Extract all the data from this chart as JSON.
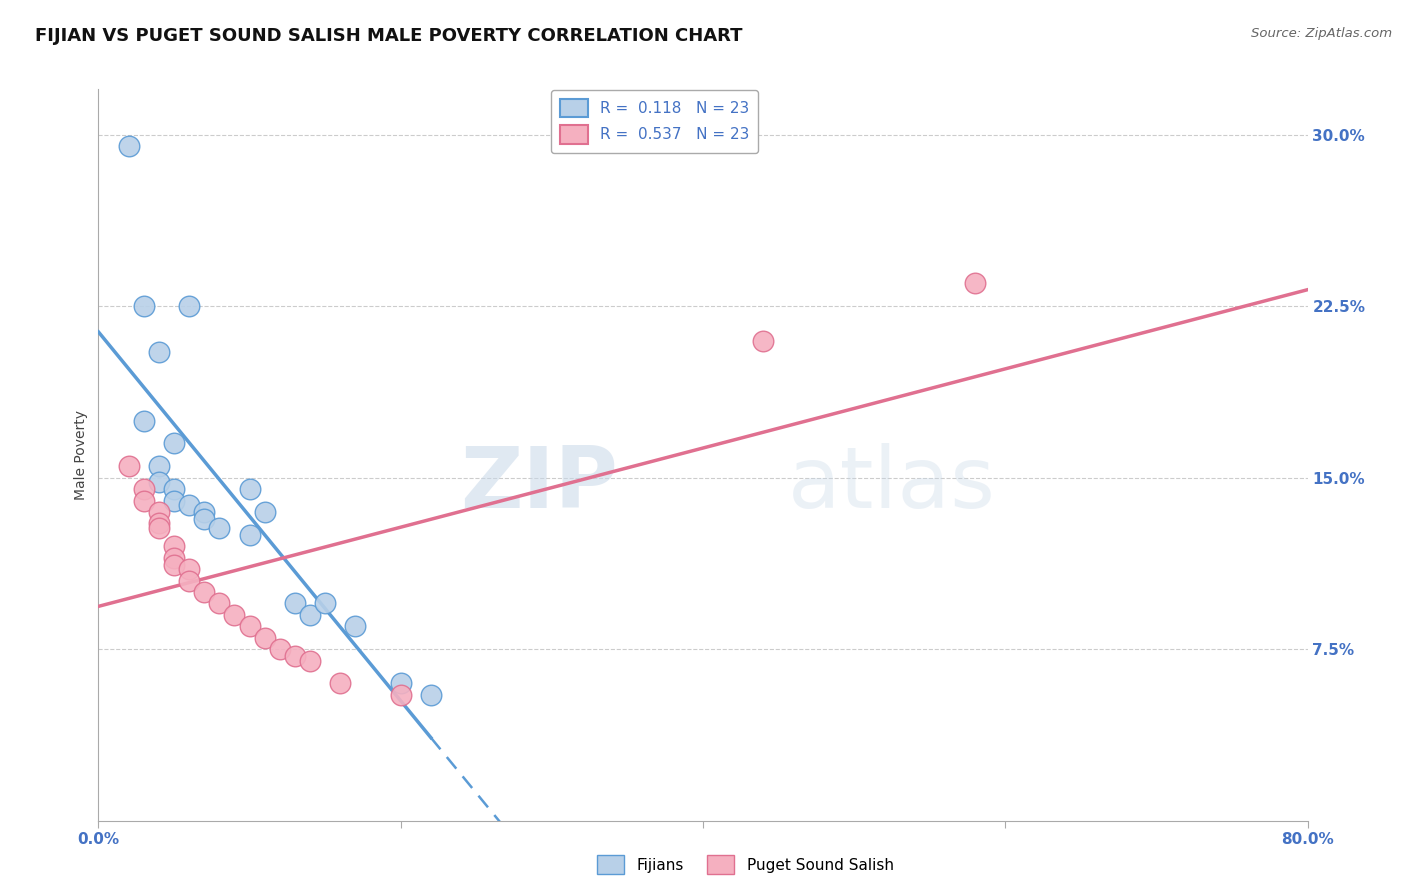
{
  "title": "FIJIAN VS PUGET SOUND SALISH MALE POVERTY CORRELATION CHART",
  "source_text": "Source: ZipAtlas.com",
  "ylabel": "Male Poverty",
  "xlim": [
    0.0,
    0.8
  ],
  "ylim": [
    0.0,
    0.32
  ],
  "xtick_positions": [
    0.0,
    0.2,
    0.4,
    0.6,
    0.8
  ],
  "xticklabels": [
    "0.0%",
    "",
    "",
    "",
    "80.0%"
  ],
  "ytick_positions": [
    0.075,
    0.15,
    0.225,
    0.3
  ],
  "ytick_labels": [
    "7.5%",
    "15.0%",
    "22.5%",
    "30.0%"
  ],
  "fijian_x": [
    0.02,
    0.03,
    0.06,
    0.04,
    0.03,
    0.05,
    0.04,
    0.04,
    0.05,
    0.05,
    0.06,
    0.07,
    0.07,
    0.08,
    0.1,
    0.1,
    0.11,
    0.13,
    0.14,
    0.15,
    0.17,
    0.2,
    0.22
  ],
  "fijian_y": [
    0.295,
    0.225,
    0.225,
    0.205,
    0.175,
    0.165,
    0.155,
    0.148,
    0.145,
    0.14,
    0.138,
    0.135,
    0.132,
    0.128,
    0.145,
    0.125,
    0.135,
    0.095,
    0.09,
    0.095,
    0.085,
    0.06,
    0.055
  ],
  "salish_x": [
    0.02,
    0.03,
    0.03,
    0.04,
    0.04,
    0.04,
    0.05,
    0.05,
    0.05,
    0.06,
    0.06,
    0.07,
    0.08,
    0.09,
    0.1,
    0.11,
    0.12,
    0.13,
    0.14,
    0.16,
    0.2,
    0.44,
    0.58
  ],
  "salish_y": [
    0.155,
    0.145,
    0.14,
    0.135,
    0.13,
    0.128,
    0.12,
    0.115,
    0.112,
    0.11,
    0.105,
    0.1,
    0.095,
    0.09,
    0.085,
    0.08,
    0.075,
    0.072,
    0.07,
    0.06,
    0.055,
    0.21,
    0.235
  ],
  "fijian_R": 0.118,
  "salish_R": 0.537,
  "N": 23,
  "fijian_color": "#b8d0e8",
  "salish_color": "#f5b0c0",
  "fijian_line_color": "#5b9bd5",
  "salish_line_color": "#e07090",
  "tick_color": "#4472c4",
  "title_fontsize": 13,
  "axis_label_fontsize": 10,
  "tick_fontsize": 11,
  "legend_fontsize": 11,
  "watermark_zip": "ZIP",
  "watermark_atlas": "atlas",
  "background_color": "#ffffff",
  "grid_color": "#cccccc"
}
